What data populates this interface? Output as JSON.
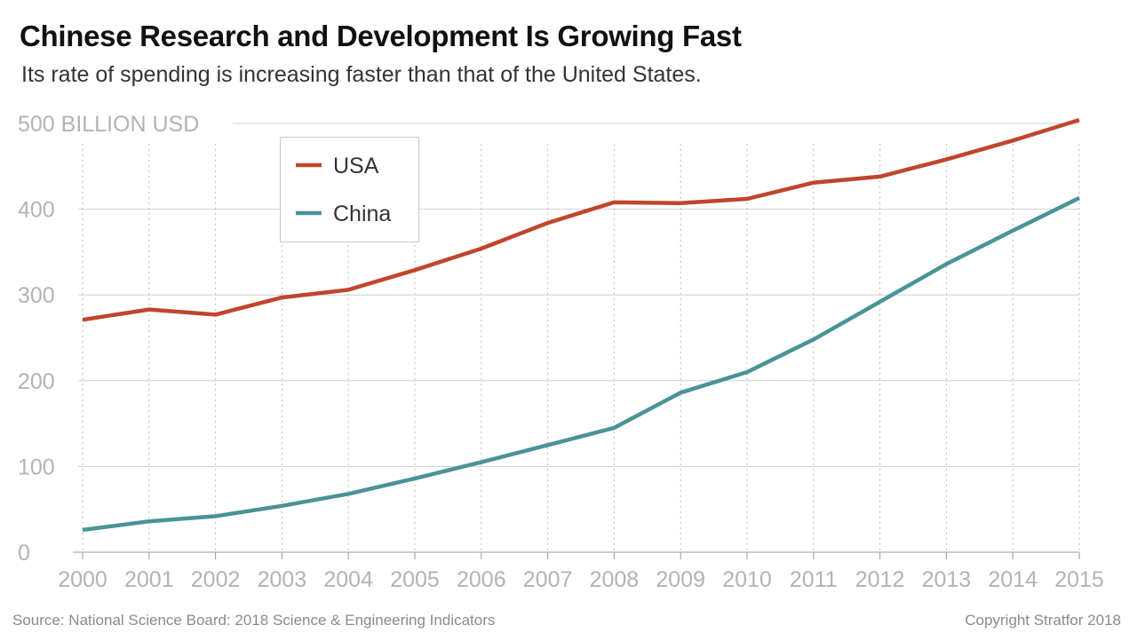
{
  "title": "Chinese Research and Development Is Growing Fast",
  "subtitle": "Its rate of spending is increasing faster than that of the United States.",
  "source": "Source: National Science Board: 2018 Science & Engineering Indicators",
  "copyright": "Copyright Stratfor 2018",
  "chart_data": {
    "type": "line",
    "x": [
      "2000",
      "2001",
      "2002",
      "2003",
      "2004",
      "2005",
      "2006",
      "2007",
      "2008",
      "2009",
      "2010",
      "2011",
      "2012",
      "2013",
      "2014",
      "2015"
    ],
    "y_ticks": [
      0,
      100,
      200,
      300,
      400,
      500
    ],
    "y_tick_labels": [
      "0",
      "100",
      "200",
      "300",
      "400",
      "500 BILLION USD"
    ],
    "ylim": [
      0,
      500
    ],
    "grid": true,
    "legend_position": "top-left",
    "series": [
      {
        "name": "USA",
        "color": "#c0452c",
        "values": [
          271,
          283,
          277,
          297,
          306,
          329,
          354,
          384,
          408,
          407,
          412,
          431,
          438,
          458,
          480,
          504
        ]
      },
      {
        "name": "China",
        "color": "#4a9396",
        "values": [
          26,
          36,
          42,
          54,
          68,
          86,
          105,
          125,
          145,
          186,
          210,
          248,
          292,
          336,
          375,
          413
        ]
      }
    ]
  }
}
